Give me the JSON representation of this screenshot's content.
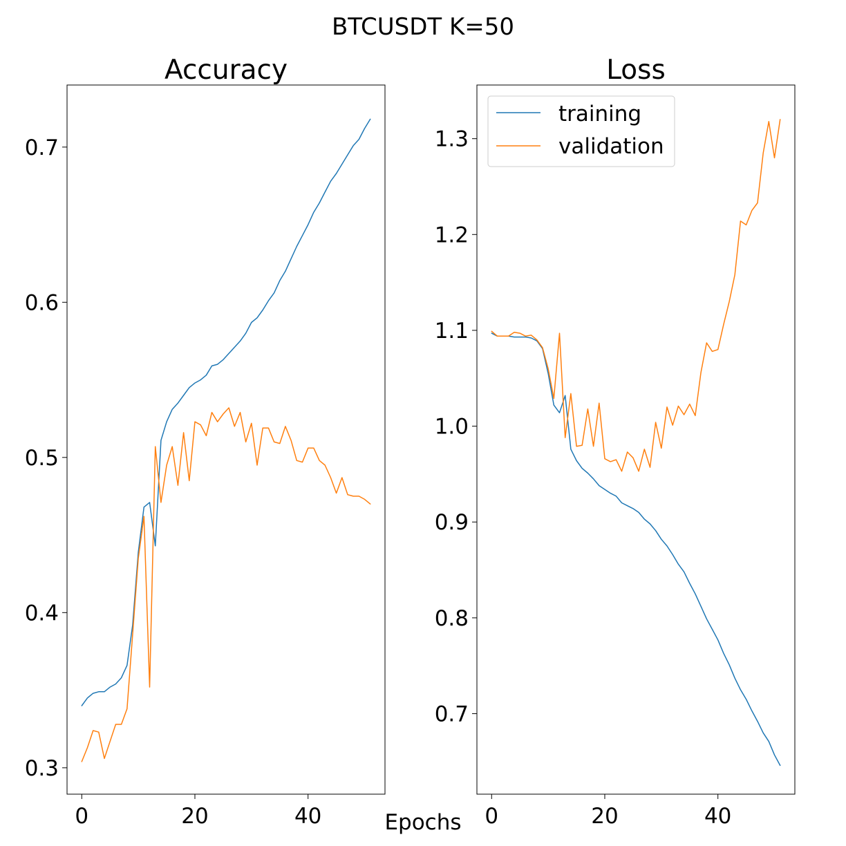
{
  "suptitle": "BTCUSDT K=50",
  "shared_xlabel": "Epochs",
  "colors": {
    "training": "#1f77b4",
    "validation": "#ff7f0e"
  },
  "chart_data": [
    {
      "type": "line",
      "title": "Accuracy",
      "xlabel": "",
      "ylabel": "",
      "xlim": [
        -2.6,
        53.6
      ],
      "ylim": [
        0.283,
        0.74
      ],
      "xticks": [
        0,
        20,
        40
      ],
      "xtick_labels": [
        "0",
        "20",
        "40"
      ],
      "yticks": [
        0.3,
        0.4,
        0.5,
        0.6,
        0.7
      ],
      "ytick_labels": [
        "0.3",
        "0.4",
        "0.5",
        "0.6",
        "0.7"
      ],
      "legend": null,
      "x": [
        0,
        1,
        2,
        3,
        4,
        5,
        6,
        7,
        8,
        9,
        10,
        11,
        12,
        13,
        14,
        15,
        16,
        17,
        18,
        19,
        20,
        21,
        22,
        23,
        24,
        25,
        26,
        27,
        28,
        29,
        30,
        31,
        32,
        33,
        34,
        35,
        36,
        37,
        38,
        39,
        40,
        41,
        42,
        43,
        44,
        45,
        46,
        47,
        48,
        49,
        50,
        51
      ],
      "series": [
        {
          "name": "training",
          "values": [
            0.34,
            0.345,
            0.348,
            0.349,
            0.349,
            0.352,
            0.354,
            0.358,
            0.366,
            0.392,
            0.439,
            0.468,
            0.471,
            0.443,
            0.511,
            0.523,
            0.531,
            0.535,
            0.54,
            0.545,
            0.548,
            0.55,
            0.553,
            0.559,
            0.56,
            0.563,
            0.567,
            0.571,
            0.575,
            0.58,
            0.587,
            0.59,
            0.595,
            0.601,
            0.606,
            0.614,
            0.62,
            0.628,
            0.636,
            0.643,
            0.65,
            0.658,
            0.664,
            0.671,
            0.678,
            0.683,
            0.689,
            0.695,
            0.701,
            0.705,
            0.712,
            0.718
          ]
        },
        {
          "name": "validation",
          "values": [
            0.304,
            0.313,
            0.324,
            0.323,
            0.306,
            0.317,
            0.328,
            0.328,
            0.338,
            0.386,
            0.435,
            0.462,
            0.352,
            0.507,
            0.471,
            0.495,
            0.507,
            0.482,
            0.516,
            0.485,
            0.523,
            0.521,
            0.514,
            0.529,
            0.523,
            0.528,
            0.532,
            0.52,
            0.529,
            0.51,
            0.522,
            0.495,
            0.519,
            0.519,
            0.51,
            0.509,
            0.52,
            0.511,
            0.498,
            0.497,
            0.506,
            0.506,
            0.498,
            0.495,
            0.487,
            0.477,
            0.487,
            0.476,
            0.475,
            0.475,
            0.473,
            0.47
          ]
        }
      ]
    },
    {
      "type": "line",
      "title": "Loss",
      "xlabel": "",
      "ylabel": "",
      "xlim": [
        -2.6,
        53.6
      ],
      "ylim": [
        0.616,
        1.356
      ],
      "xticks": [
        0,
        20,
        40
      ],
      "xtick_labels": [
        "0",
        "20",
        "40"
      ],
      "yticks": [
        0.7,
        0.8,
        0.9,
        1.0,
        1.1,
        1.2,
        1.3
      ],
      "ytick_labels": [
        "0.7",
        "0.8",
        "0.9",
        "1.0",
        "1.1",
        "1.2",
        "1.3"
      ],
      "legend": "top-left",
      "legend_entries": [
        "training",
        "validation"
      ],
      "x": [
        0,
        1,
        2,
        3,
        4,
        5,
        6,
        7,
        8,
        9,
        10,
        11,
        12,
        13,
        14,
        15,
        16,
        17,
        18,
        19,
        20,
        21,
        22,
        23,
        24,
        25,
        26,
        27,
        28,
        29,
        30,
        31,
        32,
        33,
        34,
        35,
        36,
        37,
        38,
        39,
        40,
        41,
        42,
        43,
        44,
        45,
        46,
        47,
        48,
        49,
        50,
        51
      ],
      "series": [
        {
          "name": "training",
          "values": [
            1.097,
            1.094,
            1.094,
            1.094,
            1.093,
            1.093,
            1.093,
            1.092,
            1.089,
            1.081,
            1.055,
            1.022,
            1.014,
            1.032,
            0.976,
            0.964,
            0.956,
            0.951,
            0.945,
            0.938,
            0.934,
            0.93,
            0.927,
            0.92,
            0.917,
            0.914,
            0.91,
            0.903,
            0.898,
            0.891,
            0.882,
            0.875,
            0.866,
            0.856,
            0.848,
            0.836,
            0.825,
            0.812,
            0.799,
            0.788,
            0.777,
            0.763,
            0.751,
            0.737,
            0.725,
            0.715,
            0.703,
            0.692,
            0.68,
            0.671,
            0.657,
            0.646
          ]
        },
        {
          "name": "validation",
          "values": [
            1.099,
            1.094,
            1.094,
            1.094,
            1.098,
            1.097,
            1.094,
            1.095,
            1.09,
            1.082,
            1.06,
            1.029,
            1.097,
            0.988,
            1.034,
            0.979,
            0.98,
            1.018,
            0.979,
            1.024,
            0.966,
            0.963,
            0.965,
            0.953,
            0.973,
            0.967,
            0.953,
            0.976,
            0.957,
            1.004,
            0.977,
            1.02,
            1.001,
            1.021,
            1.012,
            1.023,
            1.011,
            1.056,
            1.087,
            1.078,
            1.08,
            1.106,
            1.13,
            1.158,
            1.214,
            1.21,
            1.225,
            1.233,
            1.285,
            1.318,
            1.28,
            1.32
          ]
        }
      ]
    }
  ]
}
